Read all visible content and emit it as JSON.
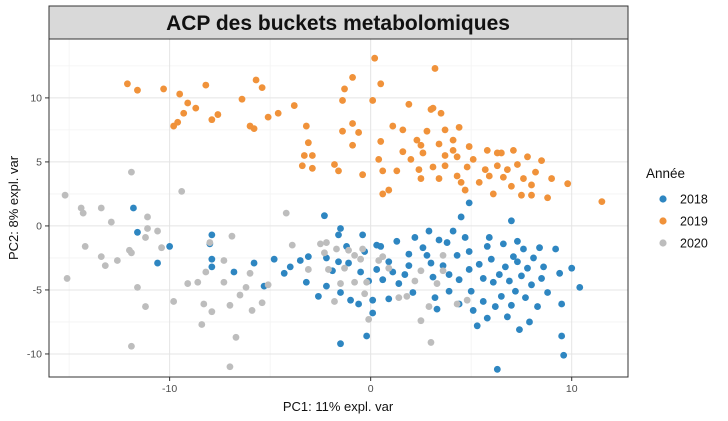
{
  "chart_data": {
    "type": "scatter",
    "title": "ACP des buckets metabolomiques",
    "xlabel": "PC1: 11% expl. var",
    "ylabel": "PC2: 8% expl. var",
    "xlim": [
      -16,
      12.8
    ],
    "ylim": [
      -11.8,
      14.6
    ],
    "xticks": [
      -10,
      0,
      10
    ],
    "yticks": [
      -10,
      -5,
      0,
      5,
      10
    ],
    "grid": true,
    "legend": {
      "title": "Année",
      "position": "right"
    },
    "series": [
      {
        "name": "2018",
        "color": "#2e86c1",
        "points": [
          [
            -11.8,
            1.4
          ],
          [
            -11.6,
            -0.5
          ],
          [
            -10,
            -1.6
          ],
          [
            -10.6,
            -2.9
          ],
          [
            -7.9,
            -0.7
          ],
          [
            -7.9,
            -3.2
          ],
          [
            -6.8,
            -3.6
          ],
          [
            -5.8,
            -2.9
          ],
          [
            -5.3,
            -4.7
          ],
          [
            -4.3,
            -3.7
          ],
          [
            -4,
            -3.2
          ],
          [
            -4.8,
            -2.6
          ],
          [
            -3.5,
            -2.7
          ],
          [
            -3.1,
            -2.4
          ],
          [
            -3.2,
            -4.4
          ],
          [
            -2.2,
            -2.5
          ],
          [
            -1.9,
            -3.5
          ],
          [
            -2.2,
            -4.7
          ],
          [
            -2.6,
            -5.5
          ],
          [
            -1.6,
            -2.8
          ],
          [
            -1.5,
            -5.2
          ],
          [
            -1,
            -5.8
          ],
          [
            -1.1,
            -2.9
          ],
          [
            -0.5,
            -3.6
          ],
          [
            -0.6,
            -6.1
          ],
          [
            -0.1,
            -4.3
          ],
          [
            0.1,
            -5.8
          ],
          [
            0.3,
            -1.5
          ],
          [
            0.3,
            -3.4
          ],
          [
            0.6,
            -4.2
          ],
          [
            -0.4,
            -0.7
          ],
          [
            -1.6,
            -0.7
          ],
          [
            -2.3,
            0.8
          ],
          [
            -1.5,
            -0.2
          ],
          [
            -1.2,
            -1.6
          ],
          [
            -1.5,
            -9.2
          ],
          [
            -0.3,
            -2
          ],
          [
            0.5,
            -1.6
          ],
          [
            0.1,
            -6.8
          ],
          [
            -0.2,
            -8.6
          ],
          [
            0.9,
            -5.7
          ],
          [
            1.3,
            -1.2
          ],
          [
            1.1,
            -3.6
          ],
          [
            1.4,
            -4.5
          ],
          [
            1.9,
            -2.2
          ],
          [
            1.9,
            -3.1
          ],
          [
            2.1,
            -5.2
          ],
          [
            2.6,
            -1.7
          ],
          [
            2.8,
            -2.3
          ],
          [
            2.9,
            -0.4
          ],
          [
            3,
            -2.9
          ],
          [
            3.1,
            -4
          ],
          [
            3.2,
            -5.6
          ],
          [
            3.3,
            -6.5
          ],
          [
            3.4,
            -1.1
          ],
          [
            3.6,
            -3.1
          ],
          [
            3.9,
            -3.8
          ],
          [
            3.9,
            -5.1
          ],
          [
            4.1,
            -0.4
          ],
          [
            4.3,
            -2.3
          ],
          [
            4.4,
            -4.2
          ],
          [
            4.4,
            -6.1
          ],
          [
            4.7,
            -0.9
          ],
          [
            4.9,
            -2
          ],
          [
            4.9,
            -3.4
          ],
          [
            5,
            -5.1
          ],
          [
            5.1,
            -6.6
          ],
          [
            5.3,
            -7.8
          ],
          [
            5.4,
            -3
          ],
          [
            5.6,
            -4.1
          ],
          [
            5.6,
            -5.9
          ],
          [
            5.8,
            -1.6
          ],
          [
            5.8,
            -7.2
          ],
          [
            6,
            -2.6
          ],
          [
            6.1,
            -4.4
          ],
          [
            6.2,
            -6.3
          ],
          [
            6.3,
            -11.2
          ],
          [
            6.4,
            -3.8
          ],
          [
            6.5,
            -5.5
          ],
          [
            6.6,
            -1.4
          ],
          [
            6.7,
            -3.2
          ],
          [
            6.8,
            -7.1
          ],
          [
            6.9,
            -4.3
          ],
          [
            7,
            -6.2
          ],
          [
            7.1,
            -2.4
          ],
          [
            7.2,
            -5.1
          ],
          [
            7.3,
            -2.8
          ],
          [
            7.4,
            -8.1
          ],
          [
            7.5,
            -3.9
          ],
          [
            7.6,
            -1.8
          ],
          [
            7.7,
            -5.6
          ],
          [
            7.8,
            -3.3
          ],
          [
            7.9,
            -7.5
          ],
          [
            8,
            -4.6
          ],
          [
            8.1,
            -2.5
          ],
          [
            8.3,
            -6.3
          ],
          [
            8.4,
            -1.7
          ],
          [
            8.5,
            -4.1
          ],
          [
            8.6,
            -3.2
          ],
          [
            8.8,
            -5.2
          ],
          [
            9.2,
            -1.8
          ],
          [
            9.4,
            -3.7
          ],
          [
            9.5,
            -6.1
          ],
          [
            9.6,
            -10.1
          ],
          [
            9.5,
            -8.6
          ],
          [
            10,
            -3.3
          ],
          [
            10.4,
            -4.8
          ],
          [
            4.9,
            1.8
          ],
          [
            4.5,
            0.7
          ],
          [
            5.9,
            -0.9
          ],
          [
            7,
            0.4
          ],
          [
            7.3,
            -1.2
          ],
          [
            3.8,
            -1.3
          ],
          [
            2.2,
            -0.9
          ],
          [
            1.7,
            -3.8
          ],
          [
            0.9,
            -2.8
          ],
          [
            -8,
            -1.4
          ],
          [
            -7.9,
            -2.6
          ]
        ]
      },
      {
        "name": "2019",
        "color": "#f0923a",
        "points": [
          [
            -12.1,
            11.1
          ],
          [
            -11.6,
            10.6
          ],
          [
            -10.3,
            10.7
          ],
          [
            -9.5,
            10.3
          ],
          [
            -8.2,
            11
          ],
          [
            -9.1,
            9.6
          ],
          [
            -9.3,
            8.8
          ],
          [
            -9.6,
            8.1
          ],
          [
            -9.8,
            7.8
          ],
          [
            -8.7,
            9.2
          ],
          [
            -7.6,
            8.7
          ],
          [
            -7.9,
            8.3
          ],
          [
            -6.4,
            9.9
          ],
          [
            -5.7,
            11.4
          ],
          [
            -5.4,
            10.8
          ],
          [
            -5.1,
            8.5
          ],
          [
            -5.8,
            7.6
          ],
          [
            -6,
            7.8
          ],
          [
            -4.6,
            8.8
          ],
          [
            -3.8,
            9.4
          ],
          [
            -3.2,
            7.8
          ],
          [
            -3.1,
            6.5
          ],
          [
            -3.3,
            5.5
          ],
          [
            -2.9,
            4.5
          ],
          [
            -3.4,
            4.7
          ],
          [
            -1.8,
            4.8
          ],
          [
            -1.6,
            4.3
          ],
          [
            -1.4,
            9.8
          ],
          [
            -0.9,
            11.6
          ],
          [
            -1.3,
            10.7
          ],
          [
            -0.9,
            8
          ],
          [
            -0.6,
            7.3
          ],
          [
            -0.9,
            6.3
          ],
          [
            0.5,
            6.6
          ],
          [
            -0.4,
            4
          ],
          [
            0.4,
            5.2
          ],
          [
            0.6,
            4.3
          ],
          [
            0.1,
            9.8
          ],
          [
            0.5,
            11.1
          ],
          [
            0.2,
            13.1
          ],
          [
            1.1,
            7.8
          ],
          [
            1.6,
            7.5
          ],
          [
            0.6,
            2.5
          ],
          [
            0.9,
            2.8
          ],
          [
            1.3,
            4.3
          ],
          [
            1.6,
            5.8
          ],
          [
            2,
            5.2
          ],
          [
            1.9,
            9.5
          ],
          [
            2.3,
            6.7
          ],
          [
            2.6,
            5.7
          ],
          [
            2.8,
            7.4
          ],
          [
            3,
            9.1
          ],
          [
            3.2,
            12.3
          ],
          [
            3.5,
            8.8
          ],
          [
            3.7,
            7.5
          ],
          [
            3.4,
            6.4
          ],
          [
            3.1,
            4.6
          ],
          [
            3.4,
            3.7
          ],
          [
            2.4,
            4.4
          ],
          [
            2.5,
            3.7
          ],
          [
            3.7,
            4.7
          ],
          [
            3.7,
            5.5
          ],
          [
            4.1,
            6.7
          ],
          [
            4.3,
            5.4
          ],
          [
            4.3,
            3.9
          ],
          [
            4.5,
            3.4
          ],
          [
            4.7,
            2.8
          ],
          [
            4.8,
            4.6
          ],
          [
            4.9,
            6.2
          ],
          [
            5.1,
            5.2
          ],
          [
            5.4,
            3.4
          ],
          [
            5.7,
            4.4
          ],
          [
            5.8,
            5.9
          ],
          [
            5.9,
            3.9
          ],
          [
            6.1,
            2.5
          ],
          [
            6.3,
            4.7
          ],
          [
            6.5,
            5.7
          ],
          [
            6.6,
            3.8
          ],
          [
            6.8,
            4.4
          ],
          [
            7,
            3.1
          ],
          [
            7.1,
            5.9
          ],
          [
            7.3,
            4.8
          ],
          [
            7.5,
            2.4
          ],
          [
            7.6,
            3.7
          ],
          [
            7.8,
            5.4
          ],
          [
            8,
            3.2
          ],
          [
            8.2,
            4.2
          ],
          [
            8.5,
            5.1
          ],
          [
            8.8,
            2.2
          ],
          [
            9,
            3.7
          ],
          [
            9.8,
            3.3
          ],
          [
            11.5,
            1.9
          ],
          [
            8,
            2.4
          ],
          [
            2.5,
            6.3
          ],
          [
            4.1,
            5.9
          ],
          [
            3.1,
            9.2
          ],
          [
            -1.4,
            7.4
          ],
          [
            6.3,
            5.7
          ],
          [
            4.4,
            7.7
          ],
          [
            -2.9,
            5.5
          ]
        ]
      },
      {
        "name": "2020",
        "color": "#bdbdbd",
        "points": [
          [
            -15.2,
            2.4
          ],
          [
            -14.4,
            1.4
          ],
          [
            -14.3,
            1
          ],
          [
            -13.4,
            1.4
          ],
          [
            -12.9,
            0.3
          ],
          [
            -15.1,
            -4.1
          ],
          [
            -14.2,
            -1.6
          ],
          [
            -13.4,
            -2.4
          ],
          [
            -13.2,
            -3.1
          ],
          [
            -12.6,
            -2.7
          ],
          [
            -11.9,
            -2.1
          ],
          [
            -11.1,
            0.7
          ],
          [
            -11.2,
            -0.9
          ],
          [
            -11.9,
            -9.4
          ],
          [
            -11.6,
            -4.8
          ],
          [
            -11.2,
            -6.3
          ],
          [
            -11.9,
            4.2
          ],
          [
            -10.6,
            -0.4
          ],
          [
            -10.4,
            -1.7
          ],
          [
            -9.8,
            -5.9
          ],
          [
            -9.1,
            -4.5
          ],
          [
            -8.6,
            -4.4
          ],
          [
            -8.3,
            -6.1
          ],
          [
            -8.4,
            -7.7
          ],
          [
            -8.2,
            -3.6
          ],
          [
            -7.9,
            -6.7
          ],
          [
            -7.3,
            -2.7
          ],
          [
            -7.3,
            -4.4
          ],
          [
            -7,
            -6.2
          ],
          [
            -7,
            -11
          ],
          [
            -6.7,
            -8.7
          ],
          [
            -6.5,
            -5.4
          ],
          [
            -6,
            -3.7
          ],
          [
            -5.9,
            -6.6
          ],
          [
            -5.4,
            -6
          ],
          [
            -5.1,
            -4.6
          ],
          [
            -4.2,
            1
          ],
          [
            -3.9,
            -1.5
          ],
          [
            -3.1,
            -3.4
          ],
          [
            -2.5,
            -1.4
          ],
          [
            -2.2,
            -1.3
          ],
          [
            -2.3,
            -2.1
          ],
          [
            -2.1,
            -3.4
          ],
          [
            -1.8,
            -5.9
          ],
          [
            -1.5,
            -4.5
          ],
          [
            -1.1,
            -1.9
          ],
          [
            -0.8,
            -2.3
          ],
          [
            -0.5,
            -2.6
          ],
          [
            -0.3,
            -5.3
          ],
          [
            -0.2,
            -4.4
          ],
          [
            -0.1,
            -7.3
          ],
          [
            -0.8,
            -4.4
          ],
          [
            -1.3,
            -3.3
          ],
          [
            -0.4,
            -1.8
          ],
          [
            0.4,
            -2.7
          ],
          [
            0.9,
            -3.3
          ],
          [
            1.4,
            -5.6
          ],
          [
            1.8,
            -5.5
          ],
          [
            2.2,
            -4.3
          ],
          [
            2.5,
            -3.5
          ],
          [
            2.9,
            -6.3
          ],
          [
            2.5,
            -7.4
          ],
          [
            3.3,
            -4.5
          ],
          [
            3.6,
            -3.5
          ],
          [
            4.8,
            -5.8
          ],
          [
            4.3,
            -6.1
          ],
          [
            3.6,
            -2.3
          ],
          [
            -6.9,
            -0.8
          ],
          [
            -9.4,
            2.7
          ],
          [
            -12,
            -1.9
          ],
          [
            -8,
            -1.3
          ],
          [
            -6.2,
            -4.8
          ],
          [
            -1.7,
            -1.8
          ],
          [
            0.6,
            -2.4
          ],
          [
            3,
            -9.1
          ],
          [
            -11.1,
            -0.2
          ]
        ]
      }
    ]
  }
}
